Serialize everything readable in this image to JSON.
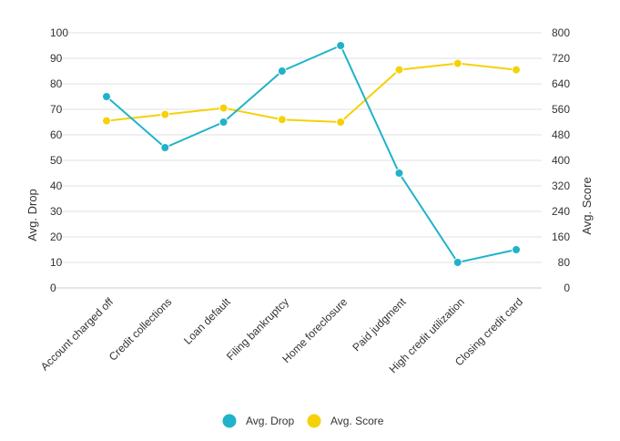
{
  "chart_data": {
    "type": "line",
    "categories": [
      "Account charged off",
      "Credit collections",
      "Loan default",
      "Filing bankruptcy",
      "Home foreclosure",
      "Paid judgment",
      "High credit utilization",
      "Closing credit card"
    ],
    "series": [
      {
        "name": "Avg. Drop",
        "axis": "left",
        "color": "#1fb3c9",
        "values": [
          75,
          55,
          65,
          85,
          95,
          45,
          10,
          15
        ]
      },
      {
        "name": "Avg. Score",
        "axis": "right",
        "color": "#f5d10a",
        "values": [
          524,
          544,
          564,
          528,
          520,
          684,
          704,
          684
        ]
      }
    ],
    "y_left": {
      "label": "Avg. Drop",
      "range": [
        0,
        100
      ],
      "ticks": [
        "0",
        "10",
        "20",
        "30",
        "40",
        "50",
        "60",
        "70",
        "80",
        "90",
        "100"
      ]
    },
    "y_right": {
      "label": "Avg. Score",
      "range": [
        0,
        800
      ],
      "ticks": [
        "0",
        "80",
        "160",
        "240",
        "320",
        "400",
        "480",
        "560",
        "640",
        "720",
        "800"
      ]
    },
    "grid": true,
    "legend": "bottom-center"
  }
}
